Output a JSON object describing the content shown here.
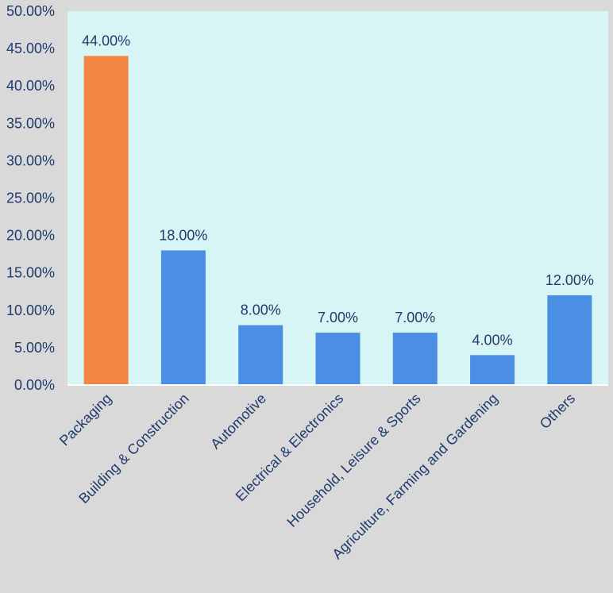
{
  "colors": {
    "page_background": "#d9d9d9",
    "plot_background": "#d7f5f5",
    "highlight_bar": "#f28744",
    "bar": "#4a8fe3",
    "text": "#1f3a6e",
    "axis": "#ffffff"
  },
  "chart_data": {
    "type": "bar",
    "title": "",
    "xlabel": "",
    "ylabel": "",
    "categories": [
      "Packaging",
      "Building & Construction",
      "Automotive",
      "Electrical & Electronics",
      "Household, Leisure & Sports",
      "Agriculture, Farming and Gardening",
      "Others"
    ],
    "values": [
      44,
      18,
      8,
      7,
      7,
      4,
      12
    ],
    "data_labels": [
      "44.00%",
      "18.00%",
      "8.00%",
      "7.00%",
      "7.00%",
      "4.00%",
      "12.00%"
    ],
    "highlight_index": 0,
    "ylim": [
      0,
      50
    ],
    "y_ticks": [
      0,
      5,
      10,
      15,
      20,
      25,
      30,
      35,
      40,
      45,
      50
    ],
    "y_tick_labels": [
      "0.00%",
      "5.00%",
      "10.00%",
      "15.00%",
      "20.00%",
      "25.00%",
      "30.00%",
      "35.00%",
      "40.00%",
      "45.00%",
      "50.00%"
    ],
    "grid": false,
    "legend": "none"
  }
}
